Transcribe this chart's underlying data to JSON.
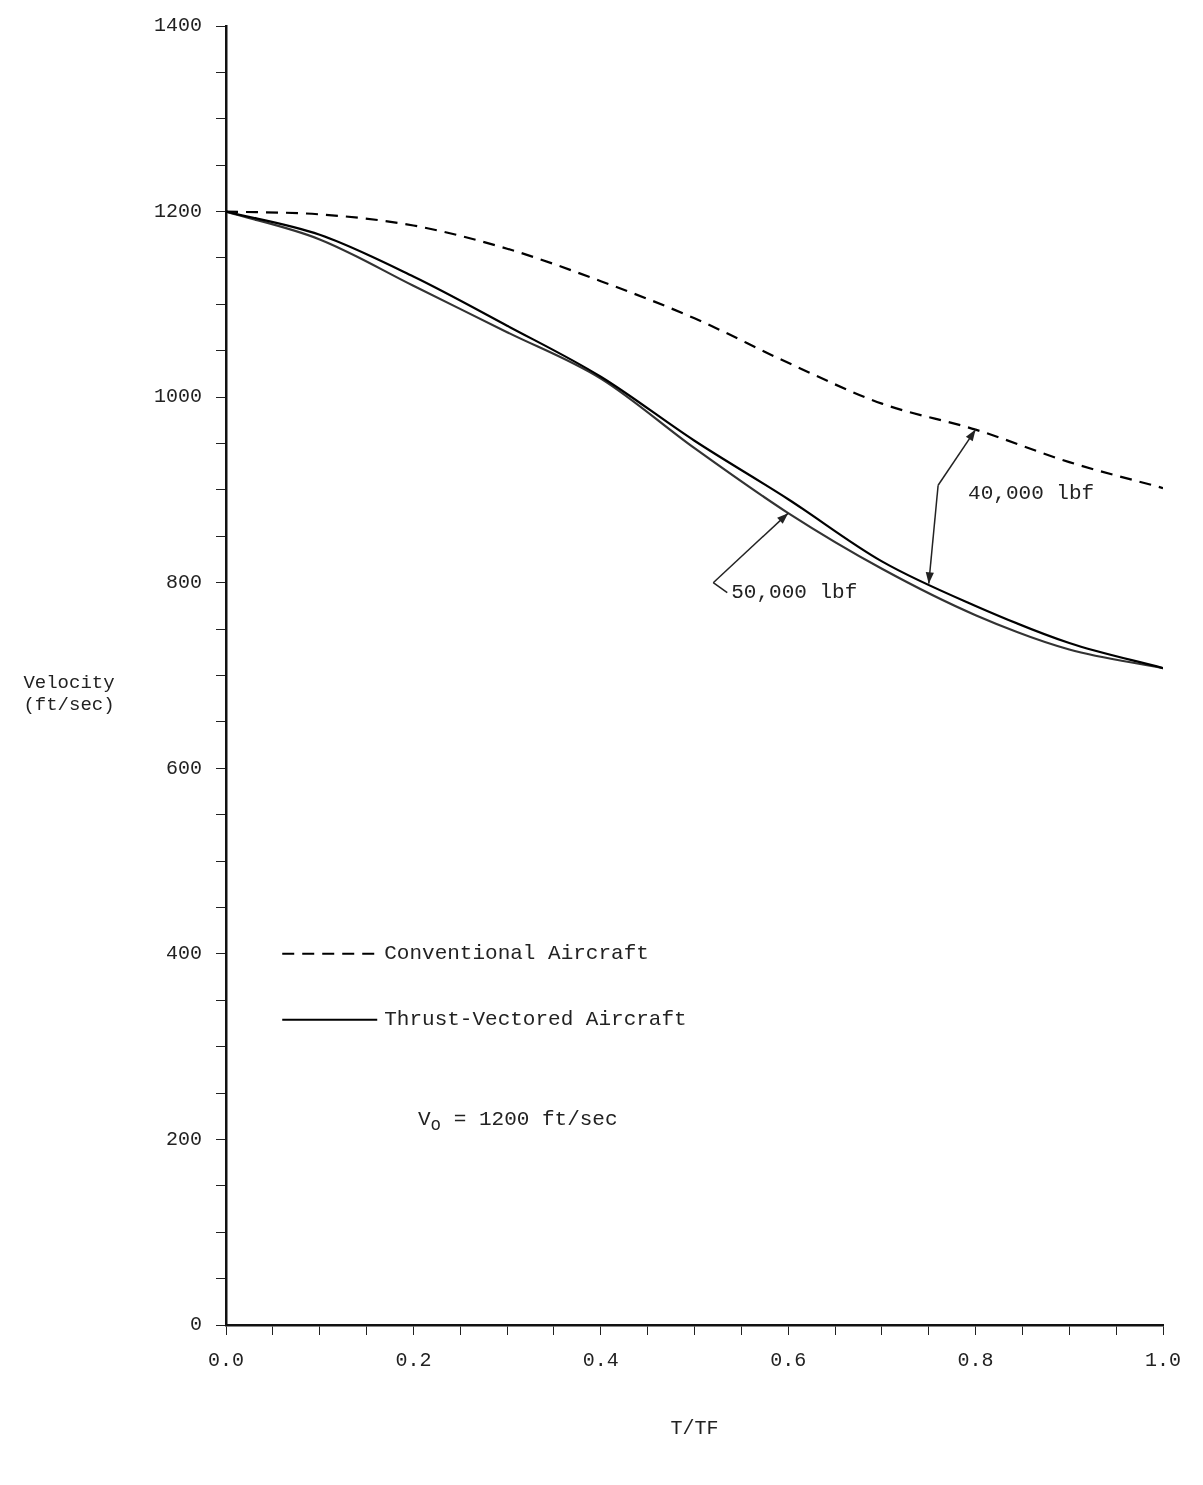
{
  "chart_data": {
    "type": "line",
    "xlabel": "T/TF",
    "ylabel": "Velocity (ft/sec)",
    "x": [
      0,
      0.1,
      0.2,
      0.3,
      0.4,
      0.5,
      0.6,
      0.7,
      0.8,
      0.9,
      1.0
    ],
    "series": [
      {
        "name": "Conventional Aircraft",
        "color": "#000000",
        "line_style": "dashed",
        "values": [
          1200,
          1197,
          1185,
          1160,
          1125,
          1085,
          1037,
          993,
          965,
          930,
          902
        ]
      },
      {
        "name": "Thrust-Vectored Aircraft",
        "color": "#000000",
        "line_style": "solid",
        "values": [
          1200,
          1175,
          1130,
          1077,
          1022,
          953,
          890,
          823,
          775,
          735,
          708
        ]
      },
      {
        "color": "#333333",
        "line_style": "solid",
        "values": [
          1200,
          1170,
          1120,
          1070,
          1020,
          945,
          875,
          815,
          765,
          728,
          708
        ]
      }
    ],
    "xlim": [
      0,
      1.0
    ],
    "xticks": [
      {
        "value": 0,
        "label": "0.0"
      },
      {
        "value": 0.05,
        "label": null
      },
      {
        "value": 0.1,
        "label": null
      },
      {
        "value": 0.15,
        "label": null
      },
      {
        "value": 0.2,
        "label": "0.2"
      },
      {
        "value": 0.25,
        "label": null
      },
      {
        "value": 0.3,
        "label": null
      },
      {
        "value": 0.35,
        "label": null
      },
      {
        "value": 0.4,
        "label": "0.4"
      },
      {
        "value": 0.45,
        "label": null
      },
      {
        "value": 0.5,
        "label": null
      },
      {
        "value": 0.55,
        "label": null
      },
      {
        "value": 0.6,
        "label": "0.6"
      },
      {
        "value": 0.65,
        "label": null
      },
      {
        "value": 0.7,
        "label": null
      },
      {
        "value": 0.75,
        "label": null
      },
      {
        "value": 0.8,
        "label": "0.8"
      },
      {
        "value": 0.85,
        "label": null
      },
      {
        "value": 0.9,
        "label": null
      },
      {
        "value": 0.95,
        "label": null
      },
      {
        "value": 1.0,
        "label": "1.0"
      }
    ],
    "ylim": [
      0,
      1400
    ],
    "yticks": [
      0,
      {
        "value": 50,
        "label": null
      },
      {
        "value": 100,
        "label": null
      },
      {
        "value": 150,
        "label": null
      },
      200,
      {
        "value": 250,
        "label": null
      },
      {
        "value": 300,
        "label": null
      },
      {
        "value": 350,
        "label": null
      },
      400,
      {
        "value": 450,
        "label": null
      },
      {
        "value": 500,
        "label": null
      },
      {
        "value": 550,
        "label": null
      },
      600,
      {
        "value": 650,
        "label": null
      },
      {
        "value": 700,
        "label": null
      },
      {
        "value": 750,
        "label": null
      },
      800,
      {
        "value": 850,
        "label": null
      },
      {
        "value": 900,
        "label": null
      },
      {
        "value": 950,
        "label": null
      },
      1000,
      {
        "value": 1050,
        "label": null
      },
      {
        "value": 1100,
        "label": null
      },
      {
        "value": 1150,
        "label": null
      },
      1200,
      {
        "value": 1250,
        "label": null
      },
      {
        "value": 1300,
        "label": null
      },
      {
        "value": 1350,
        "label": null
      },
      1400
    ],
    "grid": false,
    "legend": "bottom left",
    "marker": "none",
    "annotations": [
      {
        "text": "40,000 lbf",
        "x": 0.8,
        "y": 965
      },
      {
        "text": "50,000 lbf",
        "x": 0.6,
        "y": 875
      },
      "V$_{o}$ = 1200 ft/sec"
    ]
  }
}
